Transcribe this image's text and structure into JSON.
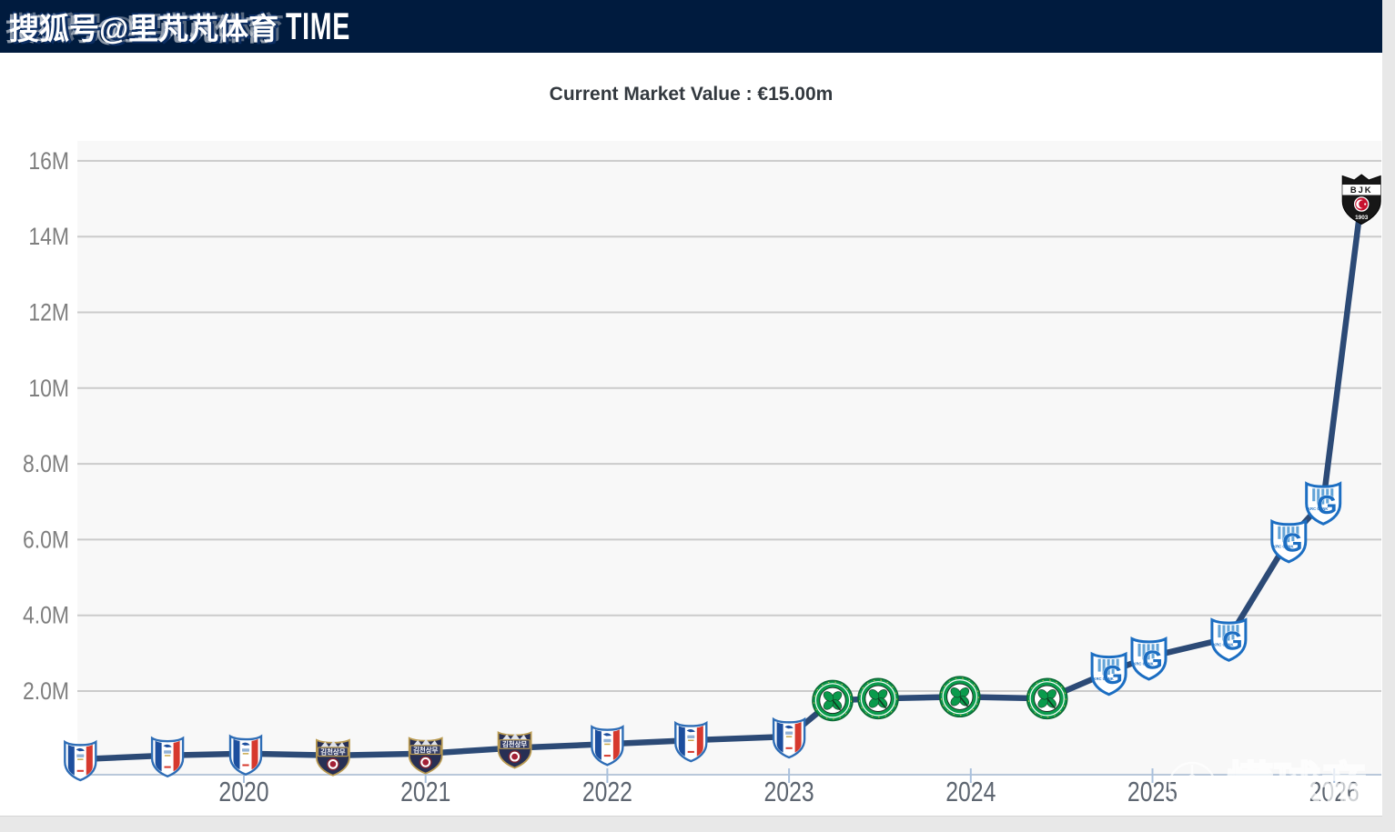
{
  "header": {
    "account_text": "搜狐号@里芃芃体育",
    "overlay_text": "TIME"
  },
  "page_title": "Current Market Value : €15.00m",
  "watermark": {
    "label": "懂球帝",
    "icon": "football-icon"
  },
  "colors": {
    "header_bg": "#001b3e",
    "page_bg": "#e8e8e8",
    "plot_bg": "#f8f8f8",
    "grid": "#cbcbcb",
    "axis_line": "#b9c8da",
    "tick_mark": "#a9c0dc",
    "line": "#2c4a76",
    "title_text": "#33393f",
    "y_label": "#7f7f7f",
    "year_label": "#5d6570"
  },
  "chart_data": {
    "type": "line",
    "title": "Current Market Value : €15.00m",
    "current_value_label": "€15.00m",
    "current_value_eur_millions": 15.0,
    "unit": "€ million",
    "grid": true,
    "legend": "none (club crests used as point markers)",
    "y_axis": {
      "range": [
        0,
        16.5
      ],
      "ticks": [
        {
          "value": 2,
          "label": "2.0M"
        },
        {
          "value": 4,
          "label": "4.0M"
        },
        {
          "value": 6,
          "label": "6.0M"
        },
        {
          "value": 8,
          "label": "8.0M"
        },
        {
          "value": 10,
          "label": "10M"
        },
        {
          "value": 12,
          "label": "12M"
        },
        {
          "value": 14,
          "label": "14M"
        },
        {
          "value": 16,
          "label": "16M"
        }
      ]
    },
    "x_axis": {
      "range": [
        2019.0,
        2026.3
      ],
      "ticks": [
        {
          "value": 2020,
          "label": "2020"
        },
        {
          "value": 2021,
          "label": "2021"
        },
        {
          "value": 2022,
          "label": "2022"
        },
        {
          "value": 2023,
          "label": "2023"
        },
        {
          "value": 2024,
          "label": "2024"
        },
        {
          "value": 2025,
          "label": "2025"
        },
        {
          "value": 2026,
          "label": "2026"
        }
      ]
    },
    "clubs": {
      "suwon": {
        "name": "Suwon Samsung Bluewings"
      },
      "gimcheon": {
        "name": "Gimcheon Sangmu FC",
        "crest_text": "김천상무"
      },
      "celtic": {
        "name": "Celtic FC"
      },
      "genk": {
        "name": "KRC Genk",
        "crest_letter": "G",
        "crest_text": "KRC GENK"
      },
      "besiktas": {
        "name": "Besiktas JK",
        "crest_text": "BJK",
        "crest_year": "1903"
      }
    },
    "series": [
      {
        "name": "Market value history",
        "color": "#2c4a76",
        "points": [
          {
            "year": 2019.1,
            "value": 0.2,
            "club": "suwon"
          },
          {
            "year": 2019.58,
            "value": 0.3,
            "club": "suwon"
          },
          {
            "year": 2020.01,
            "value": 0.35,
            "club": "suwon"
          },
          {
            "year": 2020.49,
            "value": 0.3,
            "club": "gimcheon"
          },
          {
            "year": 2021.0,
            "value": 0.35,
            "club": "gimcheon"
          },
          {
            "year": 2021.49,
            "value": 0.5,
            "club": "gimcheon"
          },
          {
            "year": 2022.0,
            "value": 0.6,
            "club": "suwon"
          },
          {
            "year": 2022.46,
            "value": 0.7,
            "club": "suwon"
          },
          {
            "year": 2023.0,
            "value": 0.8,
            "club": "suwon"
          },
          {
            "year": 2023.24,
            "value": 1.75,
            "club": "celtic"
          },
          {
            "year": 2023.49,
            "value": 1.8,
            "club": "celtic"
          },
          {
            "year": 2023.94,
            "value": 1.85,
            "club": "celtic"
          },
          {
            "year": 2024.42,
            "value": 1.8,
            "club": "celtic"
          },
          {
            "year": 2024.76,
            "value": 2.5,
            "club": "genk"
          },
          {
            "year": 2024.98,
            "value": 2.9,
            "club": "genk"
          },
          {
            "year": 2025.42,
            "value": 3.4,
            "club": "genk"
          },
          {
            "year": 2025.75,
            "value": 6.0,
            "club": "genk"
          },
          {
            "year": 2025.94,
            "value": 7.0,
            "club": "genk"
          },
          {
            "year": 2026.15,
            "value": 15.0,
            "club": "besiktas"
          }
        ]
      }
    ]
  }
}
